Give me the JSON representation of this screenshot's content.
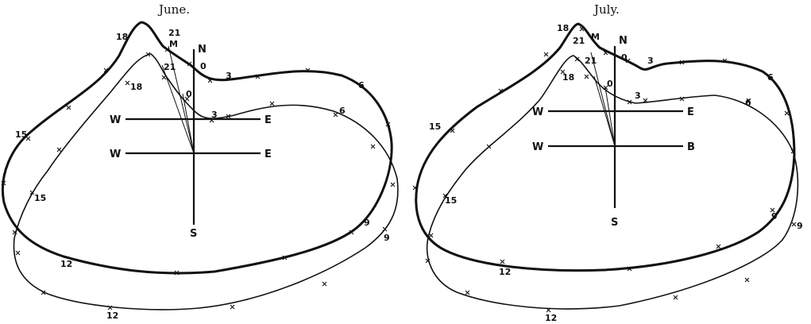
{
  "panels": [
    {
      "title": "June.",
      "compass": {
        "north": "N",
        "south": "S",
        "west": "W",
        "east": "E",
        "west2": "W",
        "east2": "E"
      },
      "marker": "M",
      "hour_labels": {
        "outer": [
          "18",
          "21",
          "0",
          "3",
          "6",
          "9",
          "12",
          "15"
        ],
        "inner": [
          "18",
          "21",
          "0",
          "3",
          "6",
          "9",
          "12",
          "15"
        ]
      }
    },
    {
      "title": "July.",
      "compass": {
        "north": "N",
        "south": "S",
        "west": "W",
        "east": "E",
        "west2": "W",
        "east2": "B"
      },
      "marker": "M",
      "hour_labels": {
        "outer": [
          "18",
          "21",
          "0",
          "3",
          "6",
          "9",
          "12",
          "15"
        ],
        "inner": [
          "18",
          "21",
          "0",
          "3",
          "6",
          "9",
          "12",
          "15"
        ]
      }
    }
  ]
}
